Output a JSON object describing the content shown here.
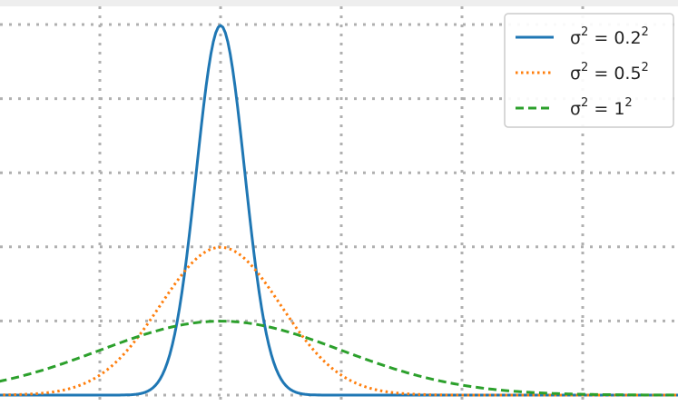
{
  "chart_data": {
    "type": "line",
    "title": "",
    "xlabel": "",
    "ylabel": "",
    "xlim": [
      -2.9,
      5.1
    ],
    "ylim": [
      0.0,
      2.05
    ],
    "xticks": [
      -2,
      -1,
      0,
      1,
      2,
      3,
      4,
      5
    ],
    "yticks": [
      0.0,
      0.4,
      0.8,
      1.2,
      1.6,
      2.0
    ],
    "grid": true,
    "legend_position": "top-right",
    "x_sample_start": -3.2,
    "x_sample_end": 5.0,
    "x_sample_step": 0.02,
    "series": [
      {
        "name": "σ^2 = 0.2^2",
        "legend": {
          "base": "σ",
          "exp1": "2",
          "mid": " = 0.2",
          "exp2": "2"
        },
        "mu": 0.0,
        "variance": 0.04,
        "color": "#1f77b4",
        "style": "solid"
      },
      {
        "name": "σ^2 = 0.5^2",
        "legend": {
          "base": "σ",
          "exp1": "2",
          "mid": " = 0.5",
          "exp2": "2"
        },
        "mu": 0.0,
        "variance": 0.25,
        "color": "#ff7f0e",
        "style": "dotted"
      },
      {
        "name": "σ^2 = 1^2",
        "legend": {
          "base": "σ",
          "exp1": "2",
          "mid": " = 1",
          "exp2": "2"
        },
        "mu": 0.0,
        "variance": 1.0,
        "color": "#2ca02c",
        "style": "dashed"
      }
    ]
  },
  "colors": {
    "grid": "#b0b0b0",
    "legend_border": "#cccccc"
  }
}
